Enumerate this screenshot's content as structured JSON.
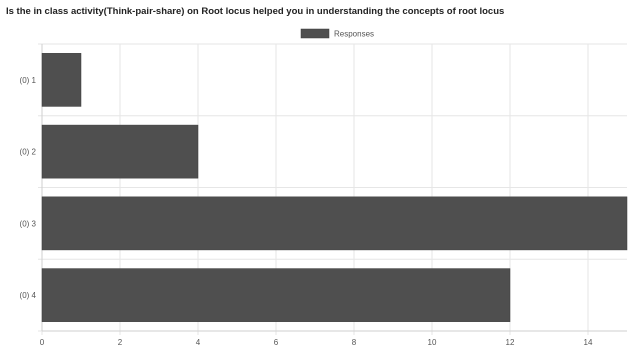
{
  "chart_data": {
    "type": "bar",
    "orientation": "horizontal",
    "title": "Is the in class activity(Think-pair-share) on Root locus helped you in understanding the concepts of root locus",
    "categories": [
      "(0) 1",
      "(0) 2",
      "(0) 3",
      "(0) 4"
    ],
    "series": [
      {
        "name": "Responses",
        "values": [
          1,
          4,
          15,
          12
        ]
      }
    ],
    "xlim": [
      0,
      15
    ],
    "xticks": [
      0,
      2,
      4,
      6,
      8,
      10,
      12,
      14
    ],
    "grid": true,
    "legend": "top-center",
    "bar_color": "#4f4f4f"
  }
}
